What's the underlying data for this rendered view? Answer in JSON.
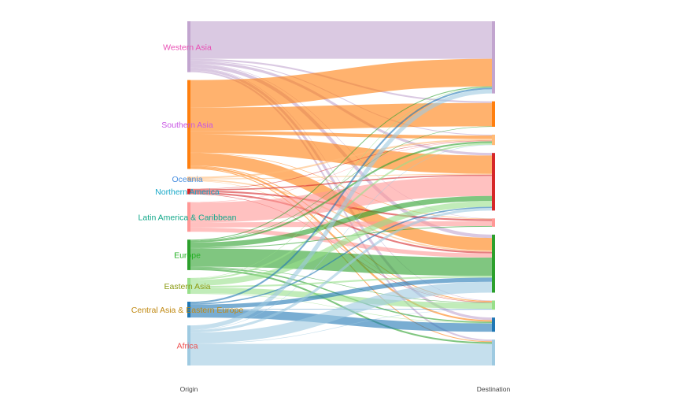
{
  "chart_data": {
    "type": "sankey",
    "title": "",
    "origin_label": "Origin",
    "destination_label": "Destination",
    "regions": [
      {
        "name": "Western Asia",
        "color": "#c2a5cf",
        "label_color": "#e84fb4"
      },
      {
        "name": "Southern Asia",
        "color": "#ff7f0e",
        "label_color": "#c856e4"
      },
      {
        "name": "Oceania",
        "color": "#ffbb78",
        "label_color": "#4a8fe0"
      },
      {
        "name": "Northern America",
        "color": "#d62728",
        "label_color": "#18a8c8"
      },
      {
        "name": "Latin America & Caribbean",
        "color": "#ff9896",
        "label_color": "#12a88a"
      },
      {
        "name": "Europe",
        "color": "#2ca02c",
        "label_color": "#22b022"
      },
      {
        "name": "Eastern Asia",
        "color": "#98df8a",
        "label_color": "#8a9a10"
      },
      {
        "name": "Central Asia & Eastern Europe",
        "color": "#1f77b4",
        "label_color": "#c08810"
      },
      {
        "name": "Africa",
        "color": "#9ecae1",
        "label_color": "#ee5050"
      }
    ],
    "flows": [
      {
        "from": "Western Asia",
        "to": "Western Asia",
        "value": 45
      },
      {
        "from": "Western Asia",
        "to": "Southern Asia",
        "value": 2
      },
      {
        "from": "Western Asia",
        "to": "Oceania",
        "value": 1
      },
      {
        "from": "Western Asia",
        "to": "Northern America",
        "value": 3
      },
      {
        "from": "Western Asia",
        "to": "Latin America & Caribbean",
        "value": 0.5
      },
      {
        "from": "Western Asia",
        "to": "Europe",
        "value": 4
      },
      {
        "from": "Western Asia",
        "to": "Eastern Asia",
        "value": 0.5
      },
      {
        "from": "Western Asia",
        "to": "Central Asia & Eastern Europe",
        "value": 3
      },
      {
        "from": "Western Asia",
        "to": "Africa",
        "value": 2
      },
      {
        "from": "Southern Asia",
        "to": "Western Asia",
        "value": 33
      },
      {
        "from": "Southern Asia",
        "to": "Southern Asia",
        "value": 28
      },
      {
        "from": "Southern Asia",
        "to": "Oceania",
        "value": 4
      },
      {
        "from": "Southern Asia",
        "to": "Northern America",
        "value": 22
      },
      {
        "from": "Southern Asia",
        "to": "Latin America & Caribbean",
        "value": 0.5
      },
      {
        "from": "Southern Asia",
        "to": "Europe",
        "value": 15
      },
      {
        "from": "Southern Asia",
        "to": "Eastern Asia",
        "value": 1
      },
      {
        "from": "Southern Asia",
        "to": "Central Asia & Eastern Europe",
        "value": 2
      },
      {
        "from": "Southern Asia",
        "to": "Africa",
        "value": 1
      },
      {
        "from": "Oceania",
        "to": "Oceania",
        "value": 2
      },
      {
        "from": "Oceania",
        "to": "Northern America",
        "value": 1
      },
      {
        "from": "Oceania",
        "to": "Europe",
        "value": 1.5
      },
      {
        "from": "Oceania",
        "to": "Eastern Asia",
        "value": 0.5
      },
      {
        "from": "Northern America",
        "to": "Northern America",
        "value": 1.5
      },
      {
        "from": "Northern America",
        "to": "Latin America & Caribbean",
        "value": 2
      },
      {
        "from": "Northern America",
        "to": "Europe",
        "value": 2
      },
      {
        "from": "Northern America",
        "to": "Eastern Asia",
        "value": 0.5
      },
      {
        "from": "Northern America",
        "to": "Oceania",
        "value": 0.5
      },
      {
        "from": "Latin America & Caribbean",
        "to": "Northern America",
        "value": 24
      },
      {
        "from": "Latin America & Caribbean",
        "to": "Latin America & Caribbean",
        "value": 6
      },
      {
        "from": "Latin America & Caribbean",
        "to": "Europe",
        "value": 5
      },
      {
        "from": "Latin America & Caribbean",
        "to": "Oceania",
        "value": 0.5
      },
      {
        "from": "Europe",
        "to": "Western Asia",
        "value": 1
      },
      {
        "from": "Europe",
        "to": "Southern Asia",
        "value": 0.5
      },
      {
        "from": "Europe",
        "to": "Oceania",
        "value": 2
      },
      {
        "from": "Europe",
        "to": "Northern America",
        "value": 6
      },
      {
        "from": "Europe",
        "to": "Latin America & Caribbean",
        "value": 1
      },
      {
        "from": "Europe",
        "to": "Europe",
        "value": 22
      },
      {
        "from": "Europe",
        "to": "Eastern Asia",
        "value": 0.5
      },
      {
        "from": "Europe",
        "to": "Central Asia & Eastern Europe",
        "value": 1.5
      },
      {
        "from": "Europe",
        "to": "Africa",
        "value": 2
      },
      {
        "from": "Eastern Asia",
        "to": "Western Asia",
        "value": 0.5
      },
      {
        "from": "Eastern Asia",
        "to": "Oceania",
        "value": 2
      },
      {
        "from": "Eastern Asia",
        "to": "Northern America",
        "value": 7
      },
      {
        "from": "Eastern Asia",
        "to": "Europe",
        "value": 2
      },
      {
        "from": "Eastern Asia",
        "to": "Eastern Asia",
        "value": 7
      },
      {
        "from": "Eastern Asia",
        "to": "Central Asia & Eastern Europe",
        "value": 0.5
      },
      {
        "from": "Central Asia & Eastern Europe",
        "to": "Western Asia",
        "value": 2
      },
      {
        "from": "Central Asia & Eastern Europe",
        "to": "Northern America",
        "value": 1.5
      },
      {
        "from": "Central Asia & Eastern Europe",
        "to": "Europe",
        "value": 5
      },
      {
        "from": "Central Asia & Eastern Europe",
        "to": "Central Asia & Eastern Europe",
        "value": 10
      },
      {
        "from": "Central Asia & Eastern Europe",
        "to": "Eastern Asia",
        "value": 0.5
      },
      {
        "from": "Africa",
        "to": "Western Asia",
        "value": 5
      },
      {
        "from": "Africa",
        "to": "Northern America",
        "value": 3
      },
      {
        "from": "Africa",
        "to": "Europe",
        "value": 13
      },
      {
        "from": "Africa",
        "to": "Eastern Asia",
        "value": 0.5
      },
      {
        "from": "Africa",
        "to": "Africa",
        "value": 26
      },
      {
        "from": "Africa",
        "to": "Oceania",
        "value": 0.5
      }
    ]
  }
}
